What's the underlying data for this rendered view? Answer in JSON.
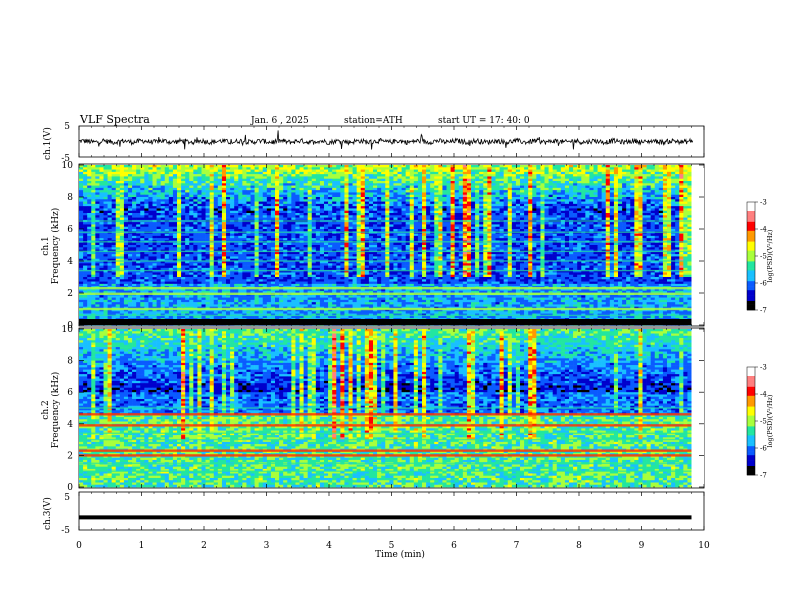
{
  "header": {
    "title": "VLF  Spectra",
    "date": "Jan. 6 , 2025",
    "station": "station=ATH",
    "start_ut": "start  UT  =   17: 40: 0"
  },
  "colors": {
    "background": "#ffffff",
    "colormap": [
      "#000000",
      "#0000cc",
      "#0a5bff",
      "#19c0ff",
      "#22e6a0",
      "#a8ff3c",
      "#ffff00",
      "#ff9900",
      "#ff0000",
      "#ff7f7f",
      "#ffffff"
    ],
    "trace": "#000000"
  },
  "chart_data": [
    {
      "type": "line",
      "panel": "ch1-waveform",
      "ylabel": "ch.1(V)",
      "ylim": [
        -5,
        5
      ],
      "yticks": [
        "5",
        "-5"
      ],
      "xlim": [
        0,
        10
      ],
      "description_value": "noisy waveform around 0 V with sporadic spikes",
      "mean": 0,
      "amplitude": 0.8
    },
    {
      "type": "heatmap",
      "panel": "ch1-spectrogram",
      "ylabel": "ch.1\nFrequency  (kHz)",
      "ylabel_line1": "ch.1",
      "ylabel_line2": "Frequency  (kHz)",
      "ylim": [
        0,
        10
      ],
      "yticks": [
        "0",
        "2",
        "4",
        "6",
        "8",
        "10"
      ],
      "xlim": [
        0,
        9.8
      ],
      "colorbar": {
        "label": "log(PSD)(V²/Hz)",
        "range": [
          -7,
          -3
        ],
        "ticks": [
          "-3",
          "-4",
          "-5",
          "-6",
          "-7"
        ]
      },
      "features_khz": {
        "strong_lines": [
          1.0,
          1.95,
          2.3
        ],
        "weak_lines": [
          0.6,
          3.4,
          4.0,
          4.6,
          5.2,
          5.8,
          6.5
        ],
        "sferics_band": [
          7,
          10
        ],
        "low_band_top": 0.5
      }
    },
    {
      "type": "heatmap",
      "panel": "ch2-spectrogram",
      "ylabel_line1": "ch.2",
      "ylabel_line2": "Frequency  (kHz)",
      "ylim": [
        0,
        10
      ],
      "yticks": [
        "0",
        "2",
        "4",
        "6",
        "8",
        "10"
      ],
      "xlim": [
        0,
        9.8
      ],
      "colorbar": {
        "label": "log(PSD)(V²/Hz)",
        "range": [
          -7,
          -3
        ],
        "ticks": [
          "-3",
          "-4",
          "-5",
          "-6",
          "-7"
        ]
      },
      "features_khz": {
        "strong_lines": [
          2.0,
          2.3,
          3.9,
          4.6
        ],
        "weak_lines": [
          1.0,
          1.5,
          3.0,
          3.4,
          5.0
        ],
        "sferics_band": [
          6,
          10
        ]
      }
    },
    {
      "type": "line",
      "panel": "ch3-waveform",
      "ylabel": "ch.3(V)",
      "ylim": [
        -5,
        5
      ],
      "yticks": [
        "5",
        "-5"
      ],
      "xlim": [
        0,
        10
      ],
      "constant_value": -2
    }
  ],
  "x_axis": {
    "label": "Time  (min)",
    "ticks": [
      "0",
      "1",
      "2",
      "3",
      "4",
      "5",
      "6",
      "7",
      "8",
      "9",
      "10"
    ],
    "range": [
      0,
      10
    ]
  }
}
